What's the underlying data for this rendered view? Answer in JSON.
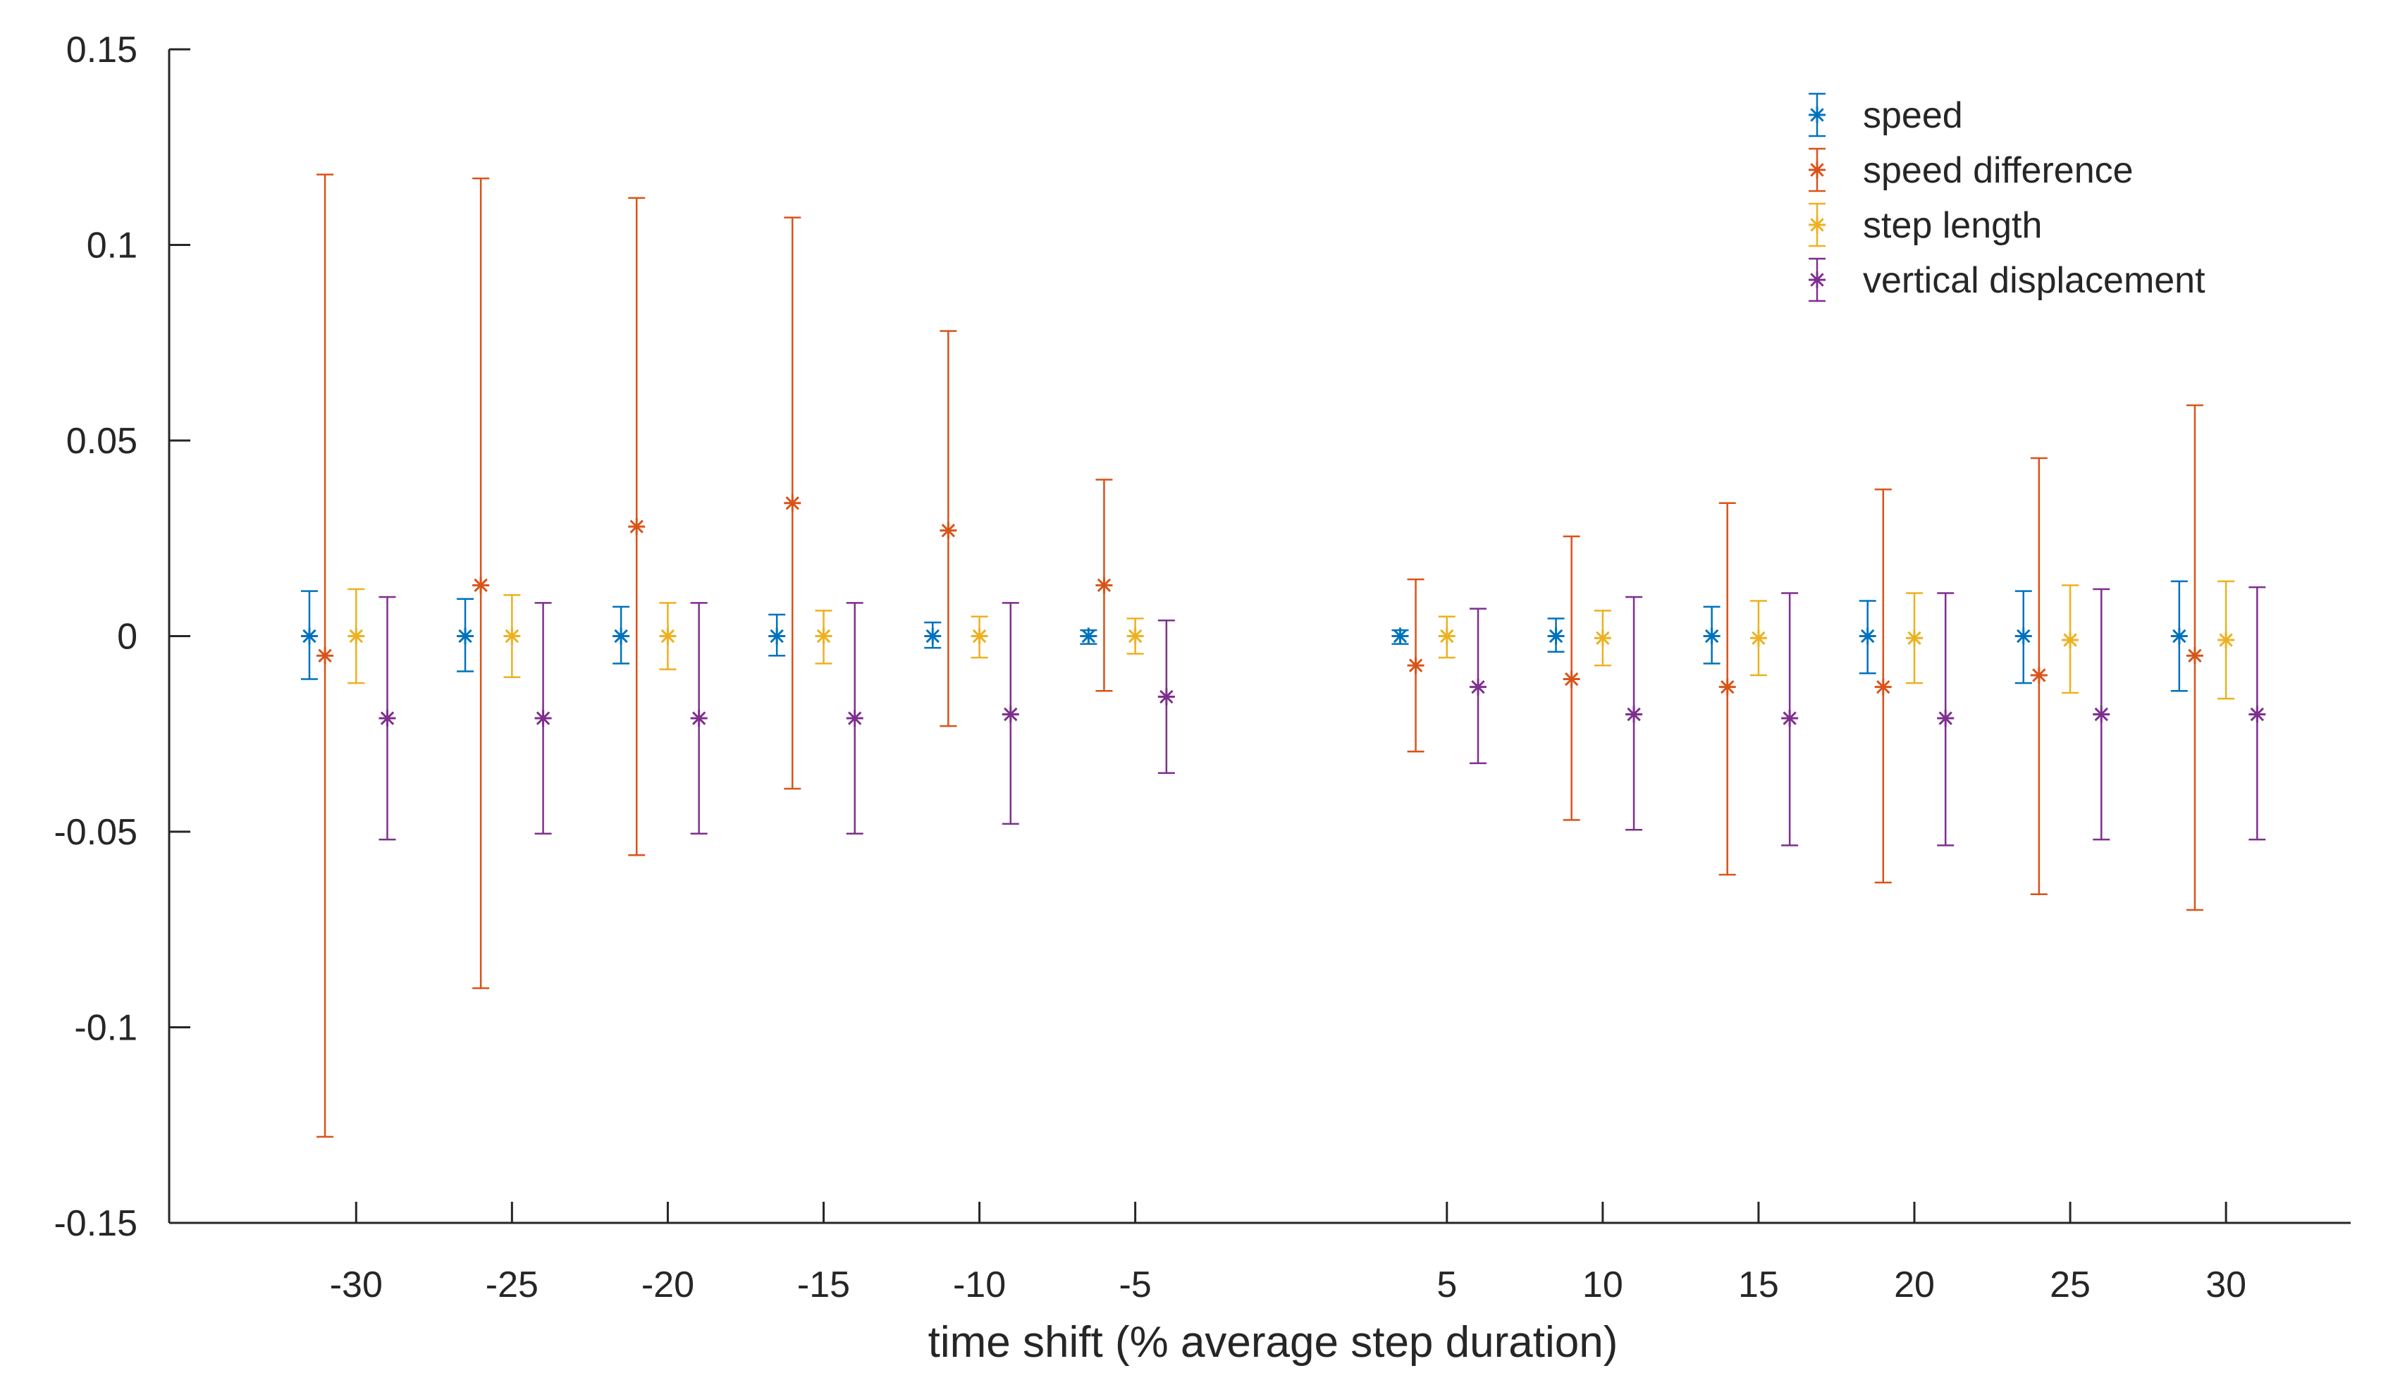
{
  "chart_data": {
    "type": "scatter",
    "xlabel": "time shift (% average step duration)",
    "ylabel": "",
    "ylim": [
      -0.15,
      0.15
    ],
    "xlim": [
      -36,
      34
    ],
    "xticks": [
      -30,
      -25,
      -20,
      -15,
      -10,
      -5,
      5,
      10,
      15,
      20,
      25,
      30
    ],
    "xtick_labels": [
      "-30",
      "-25",
      "-20",
      "-15",
      "-10",
      "-5",
      "5",
      "10",
      "15",
      "20",
      "25",
      "30"
    ],
    "yticks": [
      -0.15,
      -0.1,
      -0.05,
      0,
      0.05,
      0.1,
      0.15
    ],
    "ytick_labels": [
      "-0.15",
      "-0.1",
      "-0.05",
      "0",
      "0.05",
      "0.1",
      "0.15"
    ],
    "grid": false,
    "legend_position": "top-right",
    "error_bars": true,
    "series": [
      {
        "name": "speed",
        "color": "#0072BD",
        "x": [
          -31.5,
          -26.5,
          -21.5,
          -16.5,
          -11.5,
          -6.5,
          3.5,
          8.5,
          13.5,
          18.5,
          23.5,
          28.5
        ],
        "y": [
          0,
          0,
          0,
          0,
          0,
          0,
          0,
          0,
          0,
          0,
          0,
          0
        ],
        "err_low": [
          -0.011,
          -0.009,
          -0.007,
          -0.005,
          -0.003,
          -0.002,
          -0.002,
          -0.004,
          -0.007,
          -0.0095,
          -0.012,
          -0.014
        ],
        "err_high": [
          0.0115,
          0.0095,
          0.0075,
          0.0055,
          0.0035,
          0.0015,
          0.0015,
          0.0045,
          0.0075,
          0.009,
          0.0115,
          0.014
        ]
      },
      {
        "name": "speed difference",
        "color": "#D95319",
        "x": [
          -31,
          -26,
          -21,
          -16,
          -11,
          -6,
          4,
          9,
          14,
          19,
          24,
          29
        ],
        "y": [
          -0.005,
          0.013,
          0.028,
          0.034,
          0.027,
          0.013,
          -0.0075,
          -0.011,
          -0.013,
          -0.013,
          -0.01,
          -0.005
        ],
        "err_low": [
          -0.128,
          -0.09,
          -0.056,
          -0.039,
          -0.023,
          -0.014,
          -0.0295,
          -0.047,
          -0.061,
          -0.063,
          -0.066,
          -0.07
        ],
        "err_high": [
          0.118,
          0.117,
          0.112,
          0.107,
          0.078,
          0.04,
          0.0145,
          0.0255,
          0.034,
          0.0375,
          0.0455,
          0.059
        ]
      },
      {
        "name": "step length",
        "color": "#EDB120",
        "x": [
          -30,
          -25,
          -20,
          -15,
          -10,
          -5,
          5,
          10,
          15,
          20,
          25,
          30
        ],
        "y": [
          0,
          0,
          0,
          0,
          0,
          0,
          0,
          -0.0005,
          -0.0005,
          -0.0005,
          -0.001,
          -0.001
        ],
        "err_low": [
          -0.012,
          -0.0105,
          -0.0085,
          -0.007,
          -0.0055,
          -0.0045,
          -0.0055,
          -0.0075,
          -0.01,
          -0.012,
          -0.0145,
          -0.016
        ],
        "err_high": [
          0.012,
          0.0105,
          0.0085,
          0.0065,
          0.005,
          0.0045,
          0.005,
          0.0065,
          0.009,
          0.011,
          0.013,
          0.014
        ]
      },
      {
        "name": "vertical displacement",
        "color": "#7E2F8E",
        "x": [
          -29,
          -24,
          -19,
          -14,
          -9,
          -4,
          6,
          11,
          16,
          21,
          26,
          31
        ],
        "y": [
          -0.021,
          -0.021,
          -0.021,
          -0.021,
          -0.02,
          -0.0155,
          -0.013,
          -0.02,
          -0.021,
          -0.021,
          -0.02,
          -0.02
        ],
        "err_low": [
          -0.052,
          -0.0505,
          -0.0505,
          -0.0505,
          -0.048,
          -0.035,
          -0.0325,
          -0.0495,
          -0.0535,
          -0.0535,
          -0.052,
          -0.052
        ],
        "err_high": [
          0.01,
          0.0085,
          0.0085,
          0.0085,
          0.0085,
          0.004,
          0.007,
          0.01,
          0.011,
          0.011,
          0.012,
          0.0125
        ]
      }
    ]
  }
}
